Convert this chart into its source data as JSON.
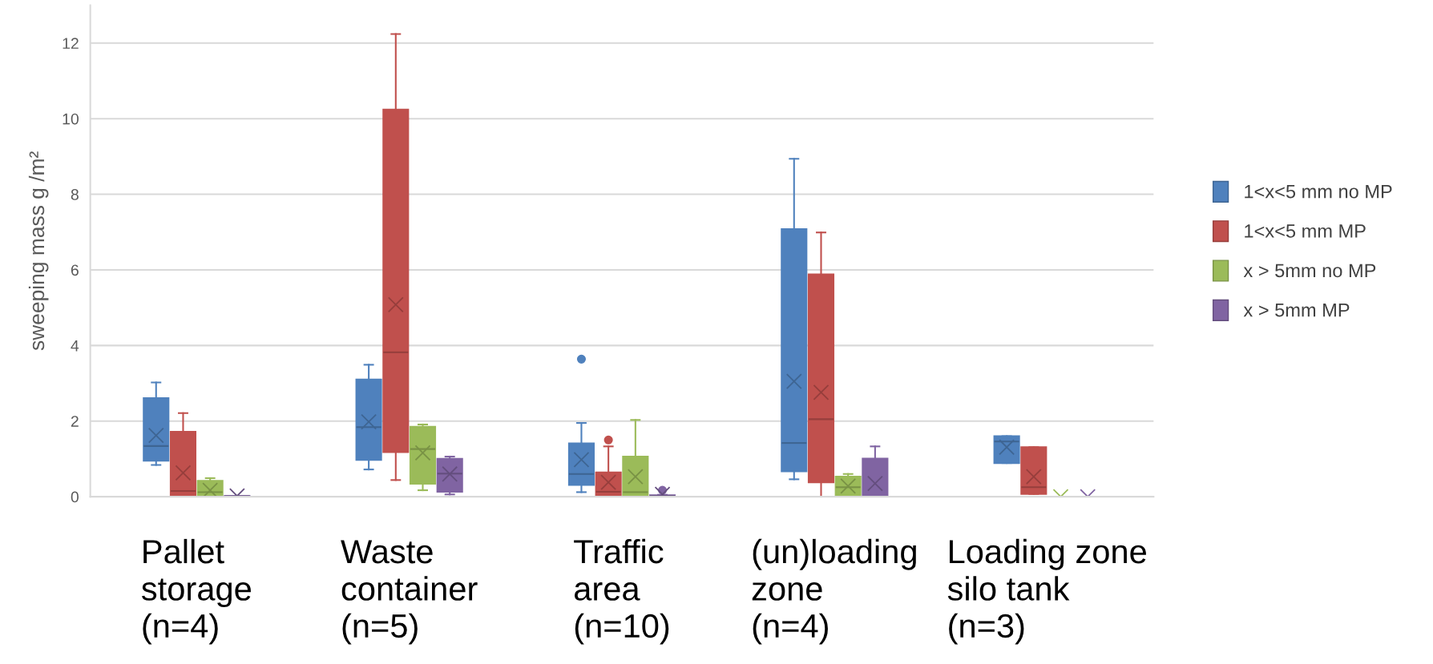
{
  "chart_data": {
    "type": "box",
    "ylabel": "sweeping mass g /m²",
    "categories": [
      "Pallet\nstorage\n(n=4)",
      "Waste\ncontainer\n(n=5)",
      "Traffic\narea\n(n=10)",
      "(un)loading\nzone\n(n=4)",
      "Loading zone\nsilo tank\n(n=3)"
    ],
    "ylim": [
      0,
      13
    ],
    "yticks": [
      0,
      2,
      4,
      6,
      8,
      10,
      12
    ],
    "grid": "y",
    "legend": "right",
    "series": [
      {
        "name": "1<x<5 mm no MP",
        "color": "#4f81bd",
        "boxes": [
          {
            "low": 0.84,
            "q1": 0.95,
            "median": 1.34,
            "q3": 2.61,
            "high": 3.02,
            "mean": 1.62
          },
          {
            "low": 0.72,
            "q1": 0.97,
            "median": 1.84,
            "q3": 3.1,
            "high": 3.49,
            "mean": 1.98
          },
          {
            "low": 0.12,
            "q1": 0.31,
            "median": 0.6,
            "q3": 1.41,
            "high": 1.95,
            "mean": 0.98,
            "outliers": [
              3.64
            ]
          },
          {
            "low": 0.46,
            "q1": 0.67,
            "median": 1.42,
            "q3": 7.08,
            "high": 8.94,
            "mean": 3.05
          },
          {
            "low": 0.89,
            "q1": 0.89,
            "median": 1.46,
            "q3": 1.6,
            "high": 1.6,
            "mean": 1.31
          }
        ]
      },
      {
        "name": "1<x<5 mm MP",
        "color": "#c0504d",
        "boxes": [
          {
            "low": 0,
            "q1": 0.03,
            "median": 0.15,
            "q3": 1.72,
            "high": 2.21,
            "mean": 0.63
          },
          {
            "low": 0.44,
            "q1": 1.18,
            "median": 3.82,
            "q3": 10.24,
            "high": 12.24,
            "mean": 5.08
          },
          {
            "low": 0,
            "q1": 0.03,
            "median": 0.13,
            "q3": 0.64,
            "high": 1.33,
            "mean": 0.38,
            "outliers": [
              1.5
            ]
          },
          {
            "low": 0,
            "q1": 0.38,
            "median": 2.05,
            "q3": 5.88,
            "high": 6.99,
            "mean": 2.76
          },
          {
            "low": 0.07,
            "q1": 0.07,
            "median": 0.25,
            "q3": 1.31,
            "high": 1.31,
            "mean": 0.53
          }
        ]
      },
      {
        "name": "x > 5mm no MP",
        "color": "#9bbb59",
        "boxes": [
          {
            "low": 0,
            "q1": 0,
            "median": 0.12,
            "q3": 0.42,
            "high": 0.49,
            "mean": 0.17
          },
          {
            "low": 0.17,
            "q1": 0.34,
            "median": 1.26,
            "q3": 1.85,
            "high": 1.91,
            "mean": 1.16
          },
          {
            "low": 0,
            "q1": 0,
            "median": 0.12,
            "q3": 1.06,
            "high": 2.03,
            "mean": 0.53
          },
          {
            "low": 0.03,
            "q1": 0.03,
            "median": 0.25,
            "q3": 0.53,
            "high": 0.6,
            "mean": 0.28
          },
          {
            "low": 0,
            "q1": 0,
            "median": 0,
            "q3": 0,
            "high": 0,
            "mean": 0
          }
        ]
      },
      {
        "name": "x > 5mm MP",
        "color": "#8064a2",
        "boxes": [
          {
            "low": 0,
            "q1": 0,
            "median": 0.01,
            "q3": 0.02,
            "high": 0.02,
            "mean": 0.02
          },
          {
            "low": 0.06,
            "q1": 0.13,
            "median": 0.61,
            "q3": 1.0,
            "high": 1.06,
            "mean": 0.6
          },
          {
            "low": 0,
            "q1": 0,
            "median": 0.02,
            "q3": 0.04,
            "high": 0.05,
            "mean": 0.06,
            "outliers": [
              0.17
            ]
          },
          {
            "low": 0,
            "q1": 0,
            "median": 0,
            "q3": 1.01,
            "high": 1.33,
            "mean": 0.35
          },
          {
            "low": 0,
            "q1": 0,
            "median": 0,
            "q3": 0,
            "high": 0,
            "mean": 0
          }
        ]
      }
    ]
  }
}
